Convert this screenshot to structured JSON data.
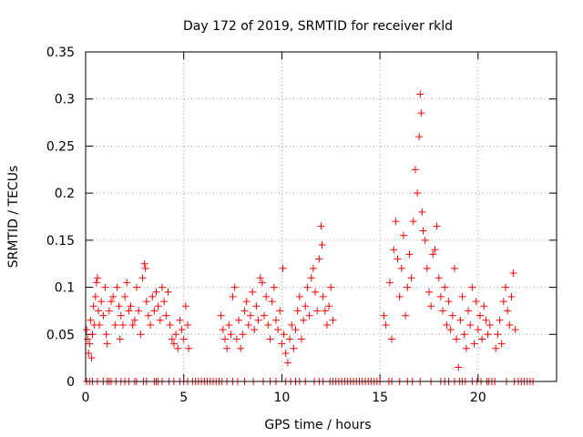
{
  "chart_data": {
    "type": "scatter",
    "title": "Day 172 of 2019, SRMTID for receiver rkld",
    "xlabel": "GPS time / hours",
    "ylabel": "SRMTID / TECUs",
    "xlim": [
      0,
      24
    ],
    "ylim": [
      0,
      0.35
    ],
    "xticks": [
      0,
      5,
      10,
      15,
      20
    ],
    "xtick_labels": [
      "0",
      "5",
      "10",
      "15",
      "20"
    ],
    "yticks": [
      0,
      0.05,
      0.1,
      0.15,
      0.2,
      0.25,
      0.3,
      0.35
    ],
    "ytick_labels": [
      "0",
      "0.05",
      "0.1",
      "0.15",
      "0.2",
      "0.25",
      "0.3",
      "0.35"
    ],
    "grid": true,
    "marker": "+",
    "series_color": "#ff0000",
    "series": [
      {
        "name": "SRMTID",
        "points": [
          [
            0.05,
            0.055
          ],
          [
            0.1,
            0.045
          ],
          [
            0.15,
            0.03
          ],
          [
            0.2,
            0.04
          ],
          [
            0.25,
            0.065
          ],
          [
            0.3,
            0.025
          ],
          [
            0.35,
            0.05
          ],
          [
            0.4,
            0.08
          ],
          [
            0.45,
            0.06
          ],
          [
            0.5,
            0.09
          ],
          [
            0.55,
            0.105
          ],
          [
            0.6,
            0.11
          ],
          [
            0.65,
            0.075
          ],
          [
            0.7,
            0.06
          ],
          [
            0.8,
            0.085
          ],
          [
            0.9,
            0.07
          ],
          [
            1.0,
            0.1
          ],
          [
            1.05,
            0.05
          ],
          [
            1.1,
            0.04
          ],
          [
            1.2,
            0.075
          ],
          [
            1.3,
            0.085
          ],
          [
            1.4,
            0.09
          ],
          [
            1.5,
            0.06
          ],
          [
            1.6,
            0.1
          ],
          [
            1.7,
            0.08
          ],
          [
            1.75,
            0.045
          ],
          [
            1.8,
            0.07
          ],
          [
            1.9,
            0.06
          ],
          [
            2.0,
            0.09
          ],
          [
            2.1,
            0.105
          ],
          [
            2.2,
            0.075
          ],
          [
            2.3,
            0.08
          ],
          [
            2.4,
            0.06
          ],
          [
            2.5,
            0.065
          ],
          [
            2.6,
            0.1
          ],
          [
            2.7,
            0.075
          ],
          [
            2.8,
            0.05
          ],
          [
            2.9,
            0.11
          ],
          [
            3.0,
            0.125
          ],
          [
            3.05,
            0.12
          ],
          [
            3.1,
            0.085
          ],
          [
            3.2,
            0.07
          ],
          [
            3.3,
            0.06
          ],
          [
            3.4,
            0.09
          ],
          [
            3.5,
            0.075
          ],
          [
            3.6,
            0.095
          ],
          [
            3.7,
            0.08
          ],
          [
            3.8,
            0.065
          ],
          [
            3.9,
            0.1
          ],
          [
            4.0,
            0.085
          ],
          [
            4.1,
            0.07
          ],
          [
            4.2,
            0.095
          ],
          [
            4.3,
            0.06
          ],
          [
            4.4,
            0.045
          ],
          [
            4.5,
            0.04
          ],
          [
            4.6,
            0.05
          ],
          [
            4.7,
            0.035
          ],
          [
            4.8,
            0.065
          ],
          [
            4.9,
            0.055
          ],
          [
            5.0,
            0.045
          ],
          [
            5.1,
            0.08
          ],
          [
            5.2,
            0.06
          ],
          [
            5.25,
            0.035
          ],
          [
            6.9,
            0.07
          ],
          [
            7.0,
            0.055
          ],
          [
            7.1,
            0.045
          ],
          [
            7.2,
            0.035
          ],
          [
            7.3,
            0.06
          ],
          [
            7.4,
            0.05
          ],
          [
            7.5,
            0.09
          ],
          [
            7.6,
            0.1
          ],
          [
            7.7,
            0.045
          ],
          [
            7.8,
            0.065
          ],
          [
            7.9,
            0.035
          ],
          [
            8.0,
            0.05
          ],
          [
            8.1,
            0.075
          ],
          [
            8.2,
            0.085
          ],
          [
            8.3,
            0.06
          ],
          [
            8.4,
            0.07
          ],
          [
            8.5,
            0.095
          ],
          [
            8.6,
            0.055
          ],
          [
            8.7,
            0.08
          ],
          [
            8.8,
            0.065
          ],
          [
            8.9,
            0.11
          ],
          [
            9.0,
            0.105
          ],
          [
            9.1,
            0.07
          ],
          [
            9.2,
            0.09
          ],
          [
            9.3,
            0.06
          ],
          [
            9.4,
            0.045
          ],
          [
            9.5,
            0.085
          ],
          [
            9.6,
            0.1
          ],
          [
            9.7,
            0.065
          ],
          [
            9.8,
            0.055
          ],
          [
            9.9,
            0.075
          ],
          [
            10.0,
            0.04
          ],
          [
            10.05,
            0.12
          ],
          [
            10.1,
            0.05
          ],
          [
            10.2,
            0.03
          ],
          [
            10.3,
            0.02
          ],
          [
            10.4,
            0.045
          ],
          [
            10.5,
            0.06
          ],
          [
            10.6,
            0.035
          ],
          [
            10.7,
            0.055
          ],
          [
            10.8,
            0.075
          ],
          [
            10.9,
            0.09
          ],
          [
            11.0,
            0.045
          ],
          [
            11.1,
            0.065
          ],
          [
            11.2,
            0.08
          ],
          [
            11.3,
            0.1
          ],
          [
            11.4,
            0.07
          ],
          [
            11.5,
            0.11
          ],
          [
            11.6,
            0.12
          ],
          [
            11.7,
            0.095
          ],
          [
            11.8,
            0.075
          ],
          [
            11.9,
            0.13
          ],
          [
            12.0,
            0.165
          ],
          [
            12.05,
            0.145
          ],
          [
            12.1,
            0.09
          ],
          [
            12.2,
            0.075
          ],
          [
            12.3,
            0.06
          ],
          [
            12.4,
            0.08
          ],
          [
            12.5,
            0.1
          ],
          [
            12.6,
            0.065
          ],
          [
            15.2,
            0.07
          ],
          [
            15.3,
            0.06
          ],
          [
            15.5,
            0.105
          ],
          [
            15.6,
            0.045
          ],
          [
            15.7,
            0.14
          ],
          [
            15.8,
            0.17
          ],
          [
            15.9,
            0.13
          ],
          [
            16.0,
            0.09
          ],
          [
            16.1,
            0.12
          ],
          [
            16.2,
            0.155
          ],
          [
            16.3,
            0.07
          ],
          [
            16.4,
            0.1
          ],
          [
            16.5,
            0.135
          ],
          [
            16.6,
            0.11
          ],
          [
            16.7,
            0.17
          ],
          [
            16.8,
            0.225
          ],
          [
            16.9,
            0.2
          ],
          [
            17.0,
            0.26
          ],
          [
            17.05,
            0.305
          ],
          [
            17.1,
            0.285
          ],
          [
            17.15,
            0.18
          ],
          [
            17.2,
            0.16
          ],
          [
            17.3,
            0.15
          ],
          [
            17.4,
            0.12
          ],
          [
            17.5,
            0.095
          ],
          [
            17.6,
            0.08
          ],
          [
            17.7,
            0.135
          ],
          [
            17.8,
            0.14
          ],
          [
            17.9,
            0.165
          ],
          [
            18.0,
            0.11
          ],
          [
            18.1,
            0.09
          ],
          [
            18.2,
            0.075
          ],
          [
            18.3,
            0.1
          ],
          [
            18.4,
            0.06
          ],
          [
            18.5,
            0.085
          ],
          [
            18.6,
            0.055
          ],
          [
            18.7,
            0.07
          ],
          [
            18.8,
            0.12
          ],
          [
            18.9,
            0.045
          ],
          [
            19.0,
            0.015
          ],
          [
            19.1,
            0.065
          ],
          [
            19.2,
            0.09
          ],
          [
            19.3,
            0.05
          ],
          [
            19.4,
            0.035
          ],
          [
            19.5,
            0.075
          ],
          [
            19.6,
            0.06
          ],
          [
            19.7,
            0.1
          ],
          [
            19.8,
            0.04
          ],
          [
            19.9,
            0.085
          ],
          [
            20.0,
            0.055
          ],
          [
            20.1,
            0.07
          ],
          [
            20.2,
            0.045
          ],
          [
            20.3,
            0.08
          ],
          [
            20.4,
            0.065
          ],
          [
            20.5,
            0.05
          ],
          [
            20.6,
            0.06
          ],
          [
            20.9,
            0.035
          ],
          [
            21.0,
            0.05
          ],
          [
            21.1,
            0.065
          ],
          [
            21.2,
            0.04
          ],
          [
            21.3,
            0.085
          ],
          [
            21.4,
            0.1
          ],
          [
            21.5,
            0.075
          ],
          [
            21.6,
            0.06
          ],
          [
            21.7,
            0.09
          ],
          [
            21.8,
            0.115
          ],
          [
            21.9,
            0.055
          ]
        ]
      }
    ],
    "zero_markers": [
      [
        0.05,
        0
      ],
      [
        0.2,
        0
      ],
      [
        0.35,
        0
      ],
      [
        0.6,
        0
      ],
      [
        0.9,
        0
      ],
      [
        1.1,
        0
      ],
      [
        1.2,
        0
      ],
      [
        1.3,
        0
      ],
      [
        1.55,
        0
      ],
      [
        1.8,
        0
      ],
      [
        2.0,
        0
      ],
      [
        2.2,
        0
      ],
      [
        2.5,
        0
      ],
      [
        2.6,
        0
      ],
      [
        2.95,
        0
      ],
      [
        3.1,
        0
      ],
      [
        3.5,
        0
      ],
      [
        3.6,
        0
      ],
      [
        3.7,
        0
      ],
      [
        3.9,
        0
      ],
      [
        4.25,
        0
      ],
      [
        4.5,
        0
      ],
      [
        4.8,
        0
      ],
      [
        5.0,
        0
      ],
      [
        5.2,
        0
      ],
      [
        5.45,
        0
      ],
      [
        5.6,
        0
      ],
      [
        5.75,
        0
      ],
      [
        5.9,
        0
      ],
      [
        6.05,
        0
      ],
      [
        6.2,
        0
      ],
      [
        6.35,
        0
      ],
      [
        6.5,
        0
      ],
      [
        6.65,
        0
      ],
      [
        6.8,
        0
      ],
      [
        6.95,
        0
      ],
      [
        7.2,
        0
      ],
      [
        7.5,
        0
      ],
      [
        7.75,
        0
      ],
      [
        8.1,
        0
      ],
      [
        8.55,
        0
      ],
      [
        9.05,
        0
      ],
      [
        9.4,
        0
      ],
      [
        9.7,
        0
      ],
      [
        10.2,
        0
      ],
      [
        10.45,
        0
      ],
      [
        10.7,
        0
      ],
      [
        10.9,
        0
      ],
      [
        11.2,
        0
      ],
      [
        11.65,
        0
      ],
      [
        11.9,
        0
      ],
      [
        12.1,
        0
      ],
      [
        12.45,
        0
      ],
      [
        12.6,
        0
      ],
      [
        12.75,
        0
      ],
      [
        12.9,
        0
      ],
      [
        13.05,
        0
      ],
      [
        13.2,
        0
      ],
      [
        13.35,
        0
      ],
      [
        13.5,
        0
      ],
      [
        13.65,
        0
      ],
      [
        13.8,
        0
      ],
      [
        13.95,
        0
      ],
      [
        14.1,
        0
      ],
      [
        14.25,
        0
      ],
      [
        14.4,
        0
      ],
      [
        14.55,
        0
      ],
      [
        14.7,
        0
      ],
      [
        14.85,
        0
      ],
      [
        15.0,
        0
      ],
      [
        15.45,
        0
      ],
      [
        15.6,
        0
      ],
      [
        16.0,
        0
      ],
      [
        16.4,
        0
      ],
      [
        16.65,
        0
      ],
      [
        17.05,
        0
      ],
      [
        17.6,
        0
      ],
      [
        18.1,
        0
      ],
      [
        18.3,
        0
      ],
      [
        18.5,
        0
      ],
      [
        18.8,
        0
      ],
      [
        19.05,
        0
      ],
      [
        19.2,
        0
      ],
      [
        19.35,
        0
      ],
      [
        19.7,
        0
      ],
      [
        19.95,
        0
      ],
      [
        20.15,
        0
      ],
      [
        20.45,
        0
      ],
      [
        20.55,
        0
      ],
      [
        20.7,
        0
      ],
      [
        20.85,
        0
      ],
      [
        21.45,
        0
      ],
      [
        21.85,
        0
      ],
      [
        22.05,
        0
      ],
      [
        22.2,
        0
      ],
      [
        22.35,
        0
      ],
      [
        22.5,
        0
      ],
      [
        22.65,
        0
      ],
      [
        22.8,
        0
      ]
    ]
  }
}
